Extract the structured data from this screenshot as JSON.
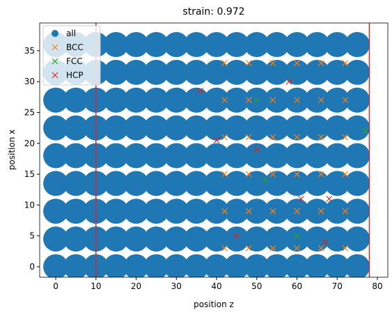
{
  "chart_data": {
    "type": "scatter",
    "title": "strain: 0.972",
    "x_label": "position z",
    "y_label": "position x",
    "xlim": [
      -4,
      82.6
    ],
    "ylim": [
      -1.7,
      39.5
    ],
    "xticks": [
      0,
      10,
      20,
      30,
      40,
      50,
      60,
      70,
      80
    ],
    "yticks": [
      0,
      5,
      10,
      15,
      20,
      25,
      30,
      35
    ],
    "vlines": [
      10,
      78
    ],
    "vline_color": "#d62728",
    "legend": "upper left",
    "series": [
      {
        "name": "all",
        "color": "#1f77b4",
        "marker": "o",
        "x": [
          0,
          5,
          10,
          15,
          20,
          25,
          30,
          35,
          40,
          45,
          50,
          55,
          60,
          65,
          70,
          75,
          0,
          5,
          10,
          15,
          20,
          25,
          30,
          35,
          40,
          45,
          50,
          55,
          60,
          65,
          70,
          75,
          0,
          5,
          10,
          15,
          20,
          25,
          30,
          35,
          40,
          45,
          50,
          55,
          60,
          65,
          70,
          75,
          0,
          5,
          10,
          15,
          20,
          25,
          30,
          35,
          40,
          45,
          50,
          55,
          60,
          65,
          70,
          75,
          0,
          5,
          10,
          15,
          20,
          25,
          30,
          35,
          40,
          45,
          50,
          55,
          60,
          65,
          70,
          75,
          0,
          5,
          10,
          15,
          20,
          25,
          30,
          35,
          40,
          45,
          50,
          55,
          60,
          65,
          70,
          75,
          0,
          5,
          10,
          15,
          20,
          25,
          30,
          35,
          40,
          45,
          50,
          55,
          60,
          65,
          70,
          75,
          0,
          5,
          10,
          15,
          20,
          25,
          30,
          35,
          40,
          45,
          50,
          55,
          60,
          65,
          70,
          75,
          0,
          5,
          10,
          15,
          20,
          25,
          30,
          35,
          40,
          45,
          50,
          55,
          60,
          65,
          70,
          75
        ],
        "y": [
          0,
          0,
          0,
          0,
          0,
          0,
          0,
          0,
          0,
          0,
          0,
          0,
          0,
          0,
          0,
          0,
          4.5,
          4.5,
          4.5,
          4.5,
          4.5,
          4.5,
          4.5,
          4.5,
          4.5,
          4.5,
          4.5,
          4.5,
          4.5,
          4.5,
          4.5,
          4.5,
          9,
          9,
          9,
          9,
          9,
          9,
          9,
          9,
          9,
          9,
          9,
          9,
          9,
          9,
          9,
          9,
          13.5,
          13.5,
          13.5,
          13.5,
          13.5,
          13.5,
          13.5,
          13.5,
          13.5,
          13.5,
          13.5,
          13.5,
          13.5,
          13.5,
          13.5,
          13.5,
          18,
          18,
          18,
          18,
          18,
          18,
          18,
          18,
          18,
          18,
          18,
          18,
          18,
          18,
          18,
          18,
          22.5,
          22.5,
          22.5,
          22.5,
          22.5,
          22.5,
          22.5,
          22.5,
          22.5,
          22.5,
          22.5,
          22.5,
          22.5,
          22.5,
          22.5,
          22.5,
          27,
          27,
          27,
          27,
          27,
          27,
          27,
          27,
          27,
          27,
          27,
          27,
          27,
          27,
          27,
          27,
          31.5,
          31.5,
          31.5,
          31.5,
          31.5,
          31.5,
          31.5,
          31.5,
          31.5,
          31.5,
          31.5,
          31.5,
          31.5,
          31.5,
          31.5,
          31.5,
          36,
          36,
          36,
          36,
          36,
          36,
          36,
          36,
          36,
          36,
          36,
          36,
          36,
          36,
          36,
          36
        ]
      },
      {
        "name": "BCC",
        "color": "#ff7f0e",
        "marker": "x",
        "x": [
          42,
          48,
          54,
          60,
          66,
          72,
          42,
          48,
          54,
          60,
          66,
          72,
          42,
          48,
          54,
          60,
          66,
          72,
          42,
          48,
          54,
          60,
          66,
          72,
          42,
          48,
          54,
          60,
          66,
          72,
          42,
          48,
          54,
          60,
          66,
          72
        ],
        "y": [
          3,
          3,
          3,
          3,
          3,
          3,
          9,
          9,
          9,
          9,
          9,
          9,
          15,
          15,
          15,
          15,
          15,
          15,
          21,
          21,
          21,
          21,
          21,
          21,
          27,
          27,
          27,
          27,
          27,
          27,
          33,
          33,
          33,
          33,
          33,
          33
        ]
      },
      {
        "name": "FCC",
        "color": "#2ca02c",
        "marker": "x",
        "x": [
          50,
          52,
          60,
          77
        ],
        "y": [
          27,
          14,
          5,
          22
        ]
      },
      {
        "name": "HCP",
        "color": "#d62728",
        "marker": "x",
        "x": [
          36,
          40,
          50,
          58,
          61,
          68,
          67,
          45
        ],
        "y": [
          28.5,
          20.5,
          19,
          30,
          11,
          11,
          4,
          5
        ]
      }
    ]
  }
}
